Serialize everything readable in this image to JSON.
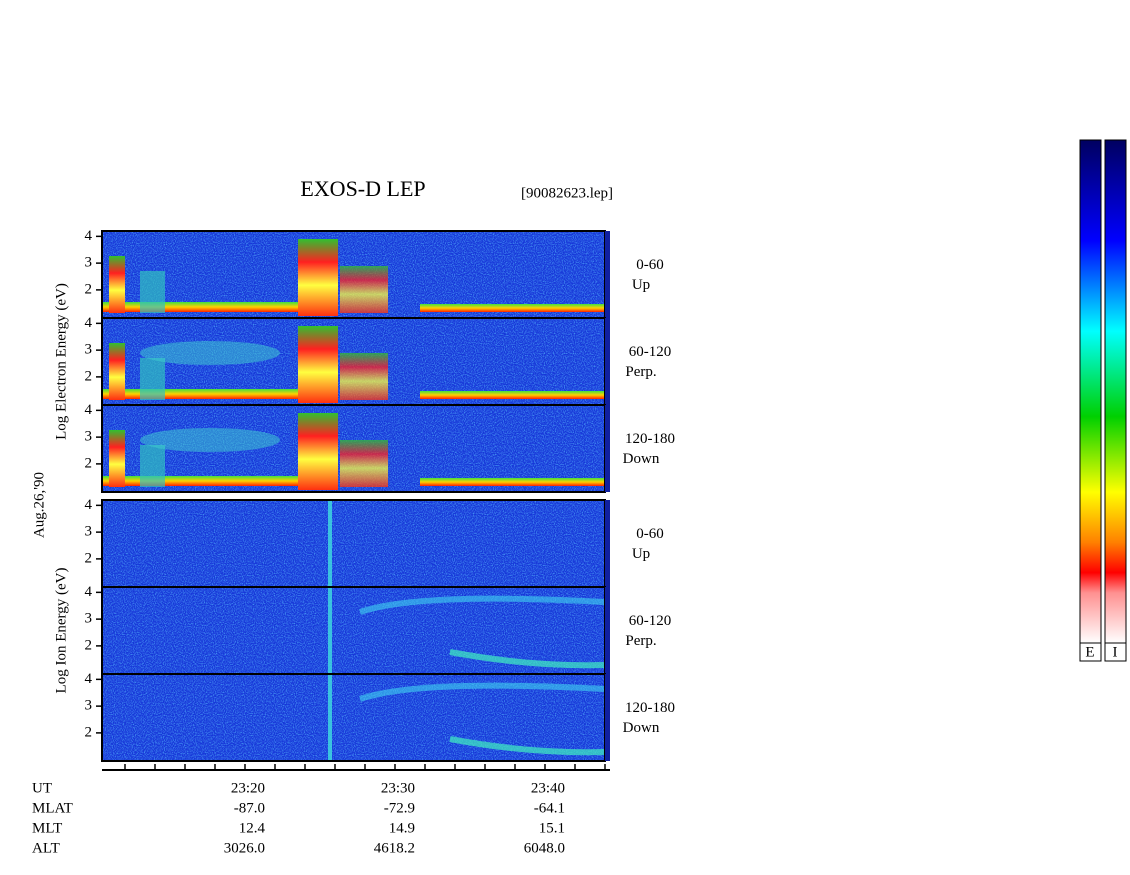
{
  "chart_data": {
    "type": "spectrogram",
    "title": "EXOS-D LEP",
    "subtitle": "[90082623.lep]",
    "date_label": "Aug.26,'90",
    "groups": [
      {
        "ylabel": "Log Electron Energy (eV)",
        "panels": [
          {
            "angle": "0-60",
            "direction": "Up"
          },
          {
            "angle": "60-120",
            "direction": "Perp."
          },
          {
            "angle": "120-180",
            "direction": "Down"
          }
        ]
      },
      {
        "ylabel": "Log Ion Energy (eV)",
        "panels": [
          {
            "angle": "0-60",
            "direction": "Up"
          },
          {
            "angle": "60-120",
            "direction": "Perp."
          },
          {
            "angle": "120-180",
            "direction": "Down"
          }
        ]
      }
    ],
    "ylim": [
      0.95,
      4.2
    ],
    "yticks": [
      2,
      3,
      4
    ],
    "table": {
      "row_labels": [
        "UT",
        "MLAT",
        "MLT",
        "ALT"
      ],
      "rows": [
        [
          "23:20",
          "23:30",
          "23:40"
        ],
        [
          "-87.0",
          "-72.9",
          "-64.1"
        ],
        [
          "12.4",
          "14.9",
          "15.1"
        ],
        [
          "3026.0",
          "4618.2",
          "6048.0"
        ]
      ]
    },
    "colorbar_labels": [
      "E",
      "I"
    ]
  }
}
